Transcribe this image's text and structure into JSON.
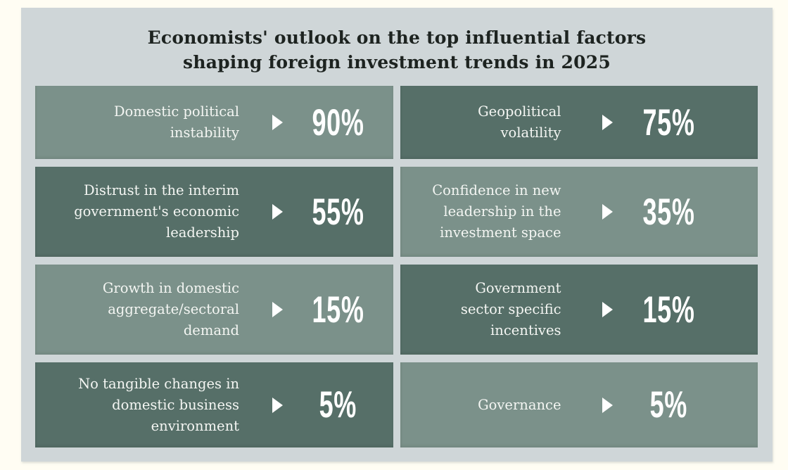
{
  "title": {
    "line1": "Economists' outlook on the top influential factors",
    "line2": "shaping foreign investment trends in 2025"
  },
  "cards": [
    {
      "label": "Domestic political\ninstability",
      "value": "90%",
      "tone": "light"
    },
    {
      "label": "Geopolitical\nvolatility",
      "value": "75%",
      "tone": "dark"
    },
    {
      "label": "Distrust in the interim\ngovernment's economic\nleadership",
      "value": "55%",
      "tone": "dark"
    },
    {
      "label": "Confidence in new\nleadership in the\ninvestment space",
      "value": "35%",
      "tone": "light"
    },
    {
      "label": "Growth in domestic\naggregate/sectoral\ndemand",
      "value": "15%",
      "tone": "light"
    },
    {
      "label": "Government\nsector specific\nincentives",
      "value": "15%",
      "tone": "dark"
    },
    {
      "label": "No tangible changes in\ndomestic business\nenvironment",
      "value": "5%",
      "tone": "dark"
    },
    {
      "label": "Governance",
      "value": "5%",
      "tone": "light"
    }
  ],
  "colors": {
    "bg_page": "#fffdf3",
    "bg_panel": "#cfd6d8",
    "card_light": "#7b918a",
    "card_dark": "#566f68",
    "title_color": "#1d2320",
    "label_color": "#f4f6f3",
    "accent_white": "#ffffff"
  },
  "chart_data": {
    "type": "table",
    "title": "Economists' outlook on the top influential factors shaping foreign investment trends in 2025",
    "categories": [
      "Domestic political instability",
      "Geopolitical volatility",
      "Distrust in the interim government's economic leadership",
      "Confidence in new leadership in the investment space",
      "Growth in domestic aggregate/sectoral demand",
      "Government sector specific incentives",
      "No tangible changes in domestic business environment",
      "Governance"
    ],
    "values": [
      90,
      75,
      55,
      35,
      15,
      15,
      5,
      5
    ],
    "unit": "%",
    "layout_hint": "2-column x 4-row grid of stat cards, checkerboard light/dark sage-green fills, right-aligned labels, white arrow, large condensed white percentage"
  }
}
